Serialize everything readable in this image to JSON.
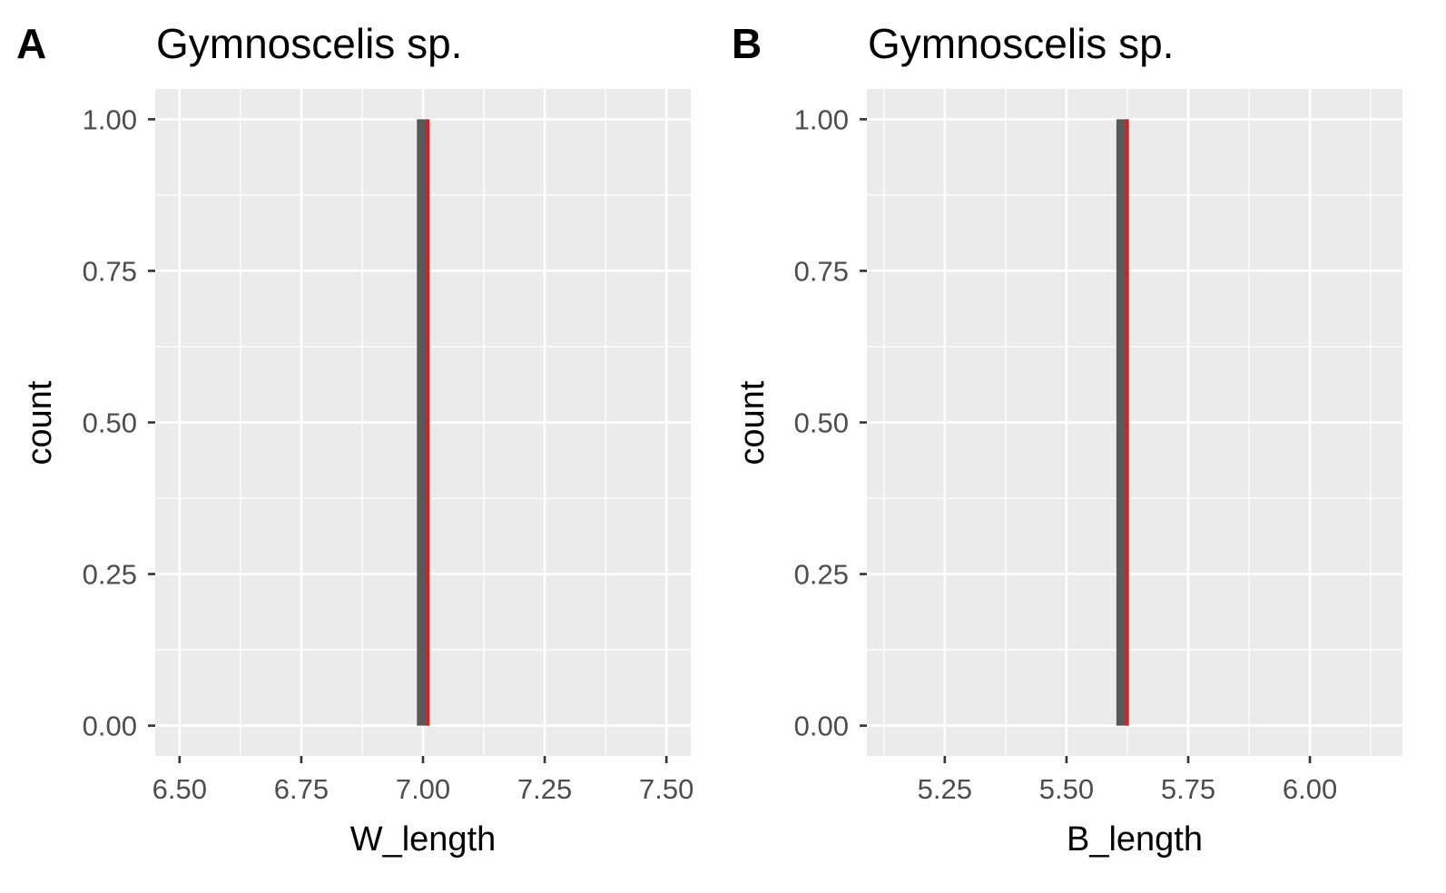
{
  "chart_data": [
    {
      "type": "bar",
      "panel": "A",
      "title": "Gymnoscelis sp.",
      "xlabel": "W_length",
      "ylabel": "count",
      "xlim": [
        6.45,
        7.55
      ],
      "ylim": [
        -0.05,
        1.05
      ],
      "xticks": [
        "6.50",
        "6.75",
        "7.00",
        "7.25",
        "7.50"
      ],
      "xtick_values": [
        6.5,
        6.75,
        7.0,
        7.25,
        7.5
      ],
      "yticks": [
        "0.00",
        "0.25",
        "0.50",
        "0.75",
        "1.00"
      ],
      "ytick_values": [
        0,
        0.25,
        0.5,
        0.75,
        1.0
      ],
      "bars": [
        {
          "x": 7.0,
          "count": 1
        }
      ],
      "bar_width": 0.025,
      "vline": {
        "x": 7.01,
        "color": "#e41a1c"
      },
      "grid": true,
      "colors": {
        "panel": "#ebebeb",
        "bar": "#595959",
        "grid": "#ffffff"
      }
    },
    {
      "type": "bar",
      "panel": "B",
      "title": "Gymnoscelis sp.",
      "xlabel": "B_length",
      "ylabel": "count",
      "xlim": [
        5.09,
        6.19
      ],
      "ylim": [
        -0.05,
        1.05
      ],
      "xticks": [
        "5.25",
        "5.50",
        "5.75",
        "6.00"
      ],
      "xtick_values": [
        5.25,
        5.5,
        5.75,
        6.0
      ],
      "yticks": [
        "0.00",
        "0.25",
        "0.50",
        "0.75",
        "1.00"
      ],
      "ytick_values": [
        0,
        0.25,
        0.5,
        0.75,
        1.0
      ],
      "bars": [
        {
          "x": 5.615,
          "count": 1
        }
      ],
      "bar_width": 0.025,
      "vline": {
        "x": 5.625,
        "color": "#e41a1c"
      },
      "grid": true,
      "colors": {
        "panel": "#ebebeb",
        "bar": "#595959",
        "grid": "#ffffff"
      }
    }
  ]
}
